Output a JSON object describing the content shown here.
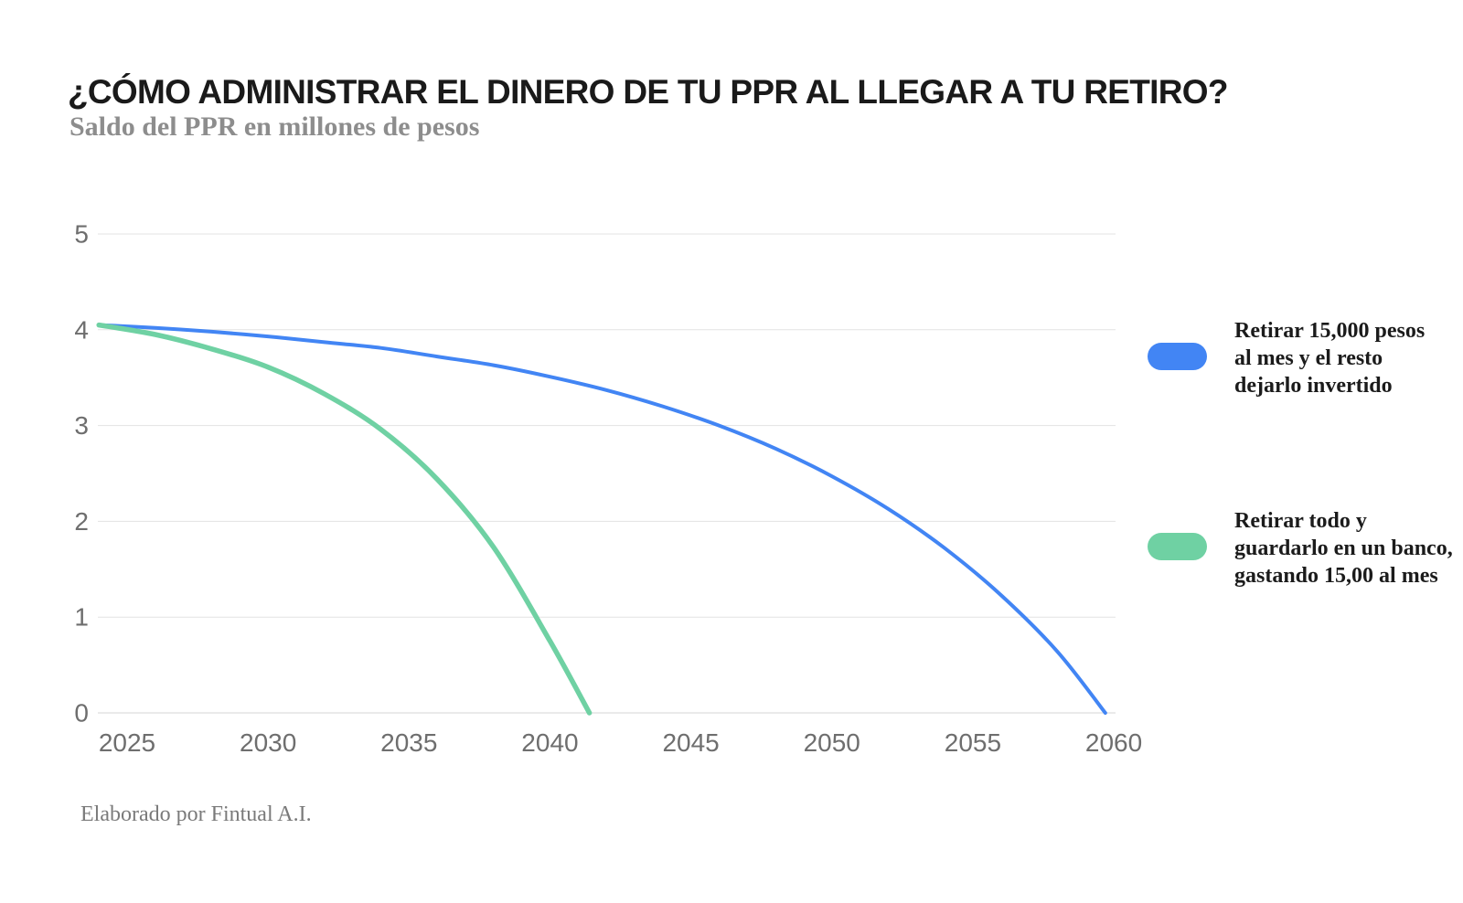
{
  "header": {
    "title": "¿CÓMO ADMINISTRAR EL DINERO DE TU PPR AL LLEGAR A TU RETIRO?",
    "subtitle": "Saldo del PPR en millones de pesos"
  },
  "legend": {
    "items": [
      {
        "label": "Retirar 15,000 pesos\nal mes y el resto\ndejarlo invertido",
        "color": "#4285f4"
      },
      {
        "label": "Retirar todo y\nguardarlo en un banco,\ngastando 15,00 al mes",
        "color": "#6fd1a3"
      }
    ]
  },
  "footer": {
    "credit": "Elaborado por Fintual A.I."
  },
  "chart_data": {
    "type": "line",
    "title": "¿CÓMO ADMINISTRAR EL DINERO DE TU PPR AL LLEGAR A TU RETIRO?",
    "ylabel": "Saldo del PPR en millones de pesos",
    "xlabel": "",
    "xlim": [
      2023.97,
      2060.2
    ],
    "ylim": [
      0,
      5
    ],
    "x_ticks": [
      2025,
      2030,
      2035,
      2040,
      2045,
      2050,
      2055,
      2060
    ],
    "y_ticks": [
      0,
      1,
      2,
      3,
      4,
      5
    ],
    "grid": "horizontal",
    "legend_position": "right",
    "colors": {
      "grid": "#e3e3e3",
      "baseline": "#d6d6d6",
      "axis_labels": "#6e6e6e"
    },
    "series": [
      {
        "name": "Retirar 15,000 pesos al mes y el resto dejarlo invertido",
        "color": "#4285f4",
        "stroke_width": 4,
        "x": [
          2024,
          2026,
          2028,
          2030,
          2032,
          2034,
          2036,
          2038,
          2040,
          2042,
          2044,
          2046,
          2048,
          2050,
          2052,
          2054,
          2056,
          2058,
          2059.7
        ],
        "y": [
          4.05,
          4.02,
          3.98,
          3.93,
          3.87,
          3.81,
          3.72,
          3.63,
          3.51,
          3.37,
          3.2,
          3.0,
          2.76,
          2.47,
          2.13,
          1.72,
          1.23,
          0.64,
          0
        ]
      },
      {
        "name": "Retirar todo y guardarlo en un banco, gastando 15,00 al mes",
        "color": "#6fd1a3",
        "stroke_width": 5.5,
        "x": [
          2024,
          2026,
          2028,
          2030,
          2032,
          2034,
          2036,
          2038,
          2040,
          2041.4
        ],
        "y": [
          4.05,
          3.95,
          3.8,
          3.61,
          3.33,
          2.96,
          2.44,
          1.73,
          0.75,
          0
        ]
      }
    ]
  }
}
